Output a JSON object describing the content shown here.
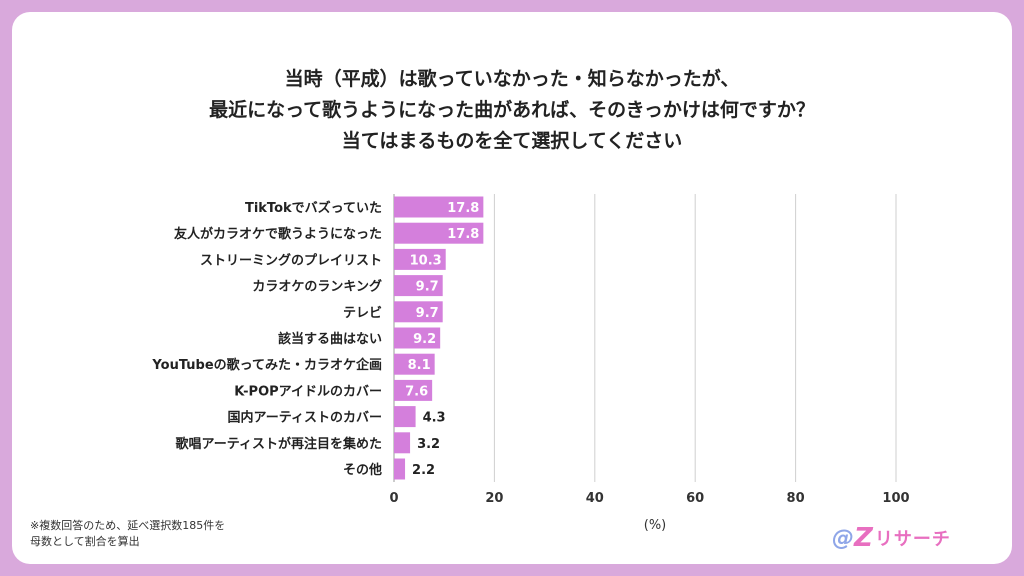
{
  "title_lines": [
    "当時（平成）は歌っていなかった・知らなかったが、",
    "最近になって歌うようになった曲があれば、そのきっかけは何ですか？",
    "当てはまるものを全て選択してください"
  ],
  "note_lines": [
    "※複数回答のため、延べ選択数185件を",
    "母数として割合を算出"
  ],
  "logo": {
    "at": "@",
    "z": "Z",
    "text": "リサーチ"
  },
  "colors": {
    "bar": "#d47fdc",
    "grid": "#cfcfcf",
    "background": "#d9a9dc"
  },
  "chart_data": {
    "type": "bar",
    "orientation": "horizontal",
    "categories": [
      "TikTokでバズっていた",
      "友人がカラオケで歌うようになった",
      "ストリーミングのプレイリスト",
      "カラオケのランキング",
      "テレビ",
      "該当する曲はない",
      "YouTubeの歌ってみた・カラオケ企画",
      "K-POPアイドルのカバー",
      "国内アーティストのカバー",
      "歌唱アーティストが再注目を集めた",
      "その他"
    ],
    "values": [
      17.8,
      17.8,
      10.3,
      9.7,
      9.7,
      9.2,
      8.1,
      7.6,
      4.3,
      3.2,
      2.2
    ],
    "value_labels": [
      "17.8",
      "17.8",
      "10.3",
      "9.7",
      "9.7",
      "9.2",
      "8.1",
      "7.6",
      "4.3",
      "3.2",
      "2.2"
    ],
    "xlim": [
      0,
      100
    ],
    "xticks": [
      "0",
      "20",
      "40",
      "60",
      "80",
      "100"
    ],
    "xlabel": "(%)",
    "grid": true
  }
}
